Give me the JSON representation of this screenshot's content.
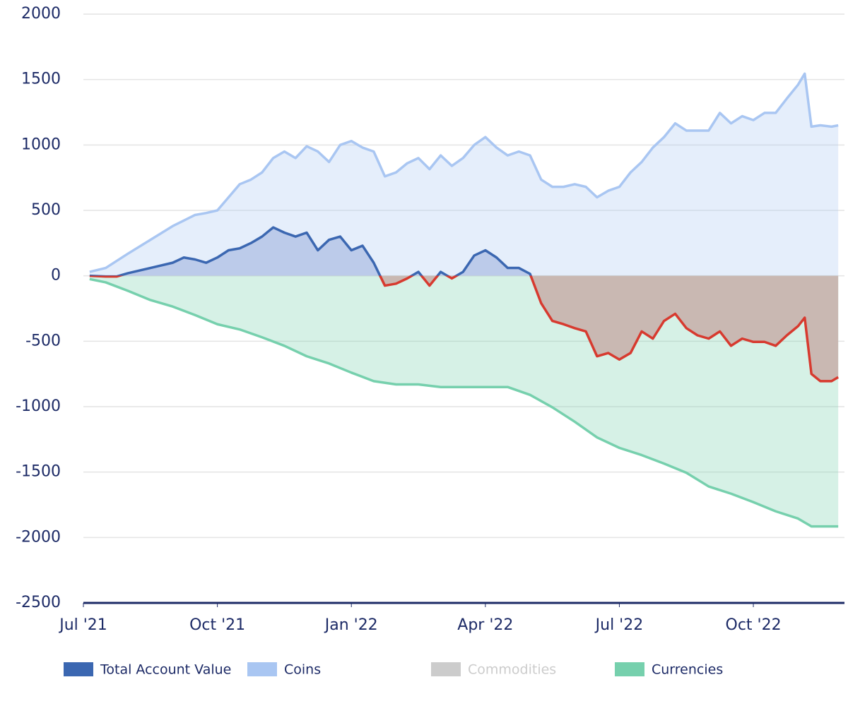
{
  "chart_data": {
    "type": "line",
    "xlim": [
      0,
      17.04
    ],
    "xticks": [
      {
        "value": 0,
        "label": "Jul '21"
      },
      {
        "value": 3,
        "label": "Oct '21"
      },
      {
        "value": 6,
        "label": "Jan '22"
      },
      {
        "value": 9,
        "label": "Apr '22"
      },
      {
        "value": 12,
        "label": "Jul '22"
      },
      {
        "value": 15,
        "label": "Oct '22"
      }
    ],
    "ylim": [
      -2500,
      2000
    ],
    "yticks": [
      -2500,
      -2000,
      -1500,
      -1000,
      -500,
      0,
      500,
      1000,
      1500,
      2000
    ],
    "grid": true,
    "series": [
      {
        "name": "Total Account Value",
        "color": "#3b67b1",
        "negative_color": "#d73a2f",
        "x": [
          0.14,
          0.5,
          0.75,
          1.0,
          1.5,
          2.0,
          2.25,
          2.5,
          2.75,
          3.0,
          3.25,
          3.5,
          3.75,
          4.0,
          4.25,
          4.5,
          4.75,
          5.0,
          5.25,
          5.5,
          5.75,
          6.0,
          6.25,
          6.5,
          6.75,
          7.0,
          7.25,
          7.5,
          7.75,
          8.0,
          8.25,
          8.5,
          8.75,
          9.0,
          9.25,
          9.5,
          9.75,
          10.0,
          10.25,
          10.5,
          10.75,
          11.0,
          11.25,
          11.5,
          11.75,
          12.0,
          12.25,
          12.5,
          12.75,
          13.0,
          13.25,
          13.5,
          13.75,
          14.0,
          14.25,
          14.5,
          14.75,
          15.0,
          15.25,
          15.5,
          15.75,
          16.0,
          16.15,
          16.3,
          16.5,
          16.75,
          16.9
        ],
        "values": [
          0,
          -5,
          -5,
          20,
          60,
          100,
          140,
          125,
          100,
          140,
          195,
          210,
          250,
          300,
          370,
          330,
          300,
          330,
          195,
          275,
          300,
          195,
          230,
          100,
          -75,
          -60,
          -20,
          30,
          -75,
          30,
          -20,
          30,
          155,
          195,
          140,
          60,
          60,
          15,
          -210,
          -345,
          -370,
          -400,
          -425,
          -615,
          -590,
          -640,
          -590,
          -425,
          -480,
          -345,
          -290,
          -400,
          -455,
          -480,
          -425,
          -535,
          -480,
          -505,
          -505,
          -535,
          -455,
          -385,
          -320,
          -750,
          -805,
          -805,
          -775
        ]
      },
      {
        "name": "Coins",
        "color": "#a9c6f2",
        "x": [
          0.14,
          0.5,
          1.0,
          1.5,
          2.0,
          2.5,
          2.75,
          3.0,
          3.25,
          3.5,
          3.75,
          4.0,
          4.25,
          4.5,
          4.75,
          5.0,
          5.25,
          5.5,
          5.75,
          6.0,
          6.25,
          6.5,
          6.75,
          7.0,
          7.25,
          7.5,
          7.75,
          8.0,
          8.25,
          8.5,
          8.75,
          9.0,
          9.25,
          9.5,
          9.75,
          10.0,
          10.25,
          10.5,
          10.75,
          11.0,
          11.25,
          11.5,
          11.75,
          12.0,
          12.25,
          12.5,
          12.75,
          13.0,
          13.25,
          13.5,
          13.75,
          14.0,
          14.25,
          14.5,
          14.75,
          15.0,
          15.25,
          15.5,
          15.75,
          16.0,
          16.15,
          16.3,
          16.5,
          16.75,
          16.9
        ],
        "values": [
          30,
          60,
          170,
          275,
          380,
          465,
          480,
          500,
          600,
          700,
          735,
          790,
          900,
          950,
          900,
          990,
          950,
          870,
          1000,
          1030,
          980,
          950,
          760,
          790,
          860,
          900,
          815,
          920,
          840,
          900,
          1000,
          1060,
          980,
          920,
          950,
          920,
          735,
          680,
          680,
          700,
          680,
          600,
          650,
          680,
          790,
          870,
          980,
          1060,
          1165,
          1110,
          1110,
          1110,
          1245,
          1165,
          1220,
          1190,
          1245,
          1245,
          1355,
          1460,
          1545,
          1140,
          1150,
          1140,
          1150
        ]
      },
      {
        "name": "Commodities",
        "color": "#cccccc",
        "visible": false
      },
      {
        "name": "Currencies",
        "color": "#76d0ad",
        "x": [
          0.14,
          0.5,
          1.0,
          1.5,
          2.0,
          2.5,
          3.0,
          3.5,
          4.0,
          4.5,
          5.0,
          5.5,
          6.0,
          6.5,
          7.0,
          7.5,
          8.0,
          8.5,
          9.0,
          9.5,
          10.0,
          10.5,
          11.0,
          11.5,
          12.0,
          12.5,
          13.0,
          13.5,
          14.0,
          14.5,
          15.0,
          15.5,
          16.0,
          16.3,
          16.9
        ],
        "values": [
          -25,
          -50,
          -115,
          -185,
          -235,
          -300,
          -370,
          -410,
          -470,
          -535,
          -615,
          -670,
          -740,
          -805,
          -830,
          -830,
          -850,
          -850,
          -850,
          -850,
          -910,
          -1005,
          -1115,
          -1235,
          -1315,
          -1370,
          -1435,
          -1505,
          -1610,
          -1665,
          -1730,
          -1800,
          -1855,
          -1915,
          -1915
        ]
      }
    ]
  }
}
